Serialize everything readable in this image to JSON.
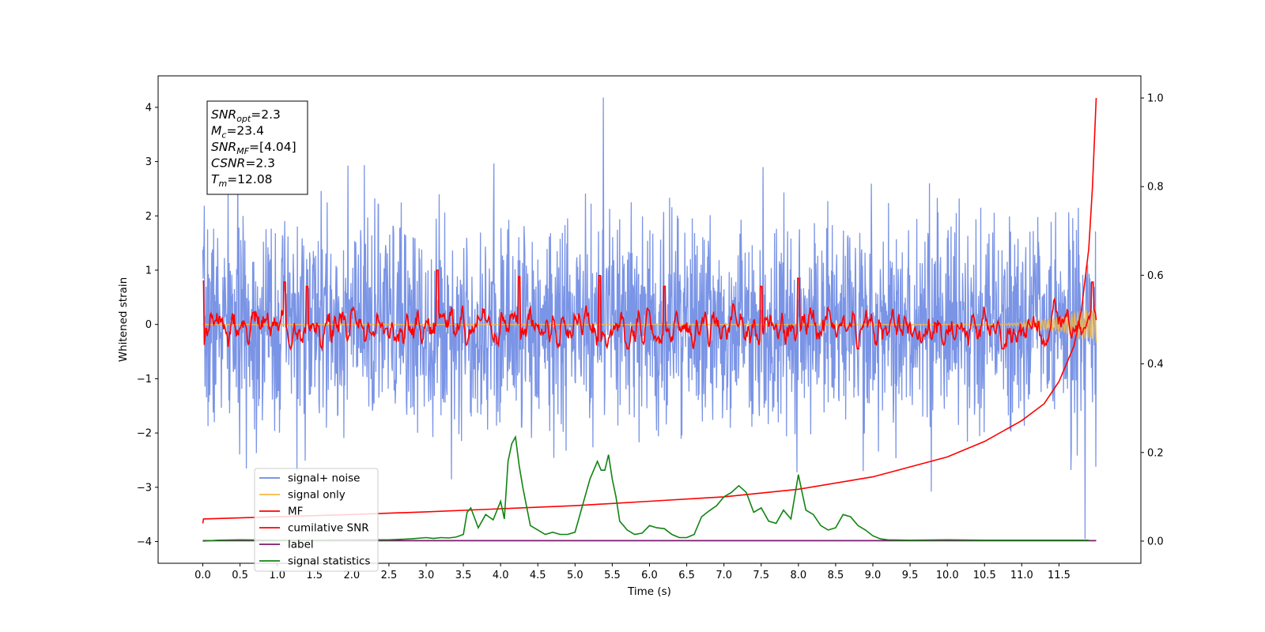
{
  "chart_data": {
    "type": "line",
    "xlabel": "Time (s)",
    "ylabel": "Whitened strain",
    "xlim": [
      -0.6,
      12.6
    ],
    "ylim": [
      -4.4,
      4.58
    ],
    "y2lim": [
      -0.05,
      1.05
    ],
    "x_ticks": [
      "0.0",
      "0.5",
      "1.0",
      "1.5",
      "2.0",
      "2.5",
      "3.0",
      "3.5",
      "4.0",
      "4.5",
      "5.0",
      "5.5",
      "6.0",
      "6.5",
      "7.0",
      "7.5",
      "8.0",
      "8.5",
      "9.0",
      "9.5",
      "10.0",
      "10.5",
      "11.0",
      "11.5"
    ],
    "y_ticks": [
      "4",
      "3",
      "2",
      "1",
      "0",
      "−1",
      "−2",
      "−3",
      "−4"
    ],
    "y2_ticks": [
      "1.0",
      "0.8",
      "0.6",
      "0.4",
      "0.2",
      "0.0"
    ],
    "annotation_lines": [
      {
        "sym": "SNR",
        "sub": "opt",
        "val": "=2.3"
      },
      {
        "sym": "M",
        "sub": "c",
        "val": "=23.4"
      },
      {
        "sym": "SNR",
        "sub": "MF",
        "val": "=[4.04]"
      },
      {
        "sym": "CSNR",
        "sub": "",
        "val": "=2.3"
      },
      {
        "sym": "T",
        "sub": "m",
        "val": "=12.08"
      }
    ],
    "legend_position": "lower-left",
    "series": [
      {
        "name": "signal+ noise",
        "color": "#6c88e3",
        "axis": "left",
        "description_values": {
          "x_range": [
            0,
            12
          ],
          "center": 0.0,
          "std": 1.0,
          "max": 4.18,
          "min": -3.95
        }
      },
      {
        "name": "signal only",
        "color": "#f5b845",
        "axis": "left",
        "description_values": {
          "x_range": [
            0,
            12
          ],
          "center": 0.0,
          "amplitude_end": 0.35
        }
      },
      {
        "name": "MF",
        "color": "#ff0000",
        "axis": "left",
        "description_values": {
          "x_range": [
            0,
            12
          ],
          "center": -0.05,
          "max": 1.0,
          "min": -0.45
        }
      },
      {
        "name": "cumilative SNR",
        "color": "#ff0000",
        "axis": "right",
        "x": [
          0.0,
          0.01,
          1.0,
          2.0,
          3.0,
          4.0,
          5.0,
          6.0,
          7.0,
          8.0,
          9.0,
          10.0,
          10.5,
          11.0,
          11.3,
          11.5,
          11.7,
          11.8,
          11.9,
          11.95,
          12.0
        ],
        "y": [
          0.04,
          0.05,
          0.055,
          0.06,
          0.066,
          0.073,
          0.08,
          0.09,
          0.1,
          0.117,
          0.145,
          0.19,
          0.225,
          0.272,
          0.31,
          0.36,
          0.44,
          0.52,
          0.66,
          0.8,
          1.0
        ]
      },
      {
        "name": "label",
        "color": "#7b1a6e",
        "axis": "right",
        "x": [
          0.0,
          12.0
        ],
        "y": [
          0.001,
          0.001
        ]
      },
      {
        "name": "signal statistics",
        "color": "#118411",
        "axis": "right",
        "x": [
          0.0,
          0.2,
          0.5,
          1.0,
          1.5,
          2.0,
          2.5,
          2.8,
          3.0,
          3.1,
          3.2,
          3.3,
          3.4,
          3.5,
          3.55,
          3.6,
          3.7,
          3.8,
          3.9,
          4.0,
          4.05,
          4.1,
          4.15,
          4.2,
          4.25,
          4.3,
          4.4,
          4.5,
          4.6,
          4.7,
          4.8,
          4.9,
          5.0,
          5.1,
          5.2,
          5.3,
          5.35,
          5.4,
          5.45,
          5.5,
          5.55,
          5.6,
          5.7,
          5.8,
          5.9,
          6.0,
          6.1,
          6.2,
          6.3,
          6.4,
          6.5,
          6.6,
          6.7,
          6.8,
          6.9,
          7.0,
          7.1,
          7.2,
          7.3,
          7.4,
          7.5,
          7.6,
          7.7,
          7.8,
          7.9,
          8.0,
          8.05,
          8.1,
          8.2,
          8.3,
          8.4,
          8.5,
          8.6,
          8.7,
          8.8,
          8.9,
          9.0,
          9.1,
          9.2,
          9.5,
          10.0,
          10.5,
          11.0,
          11.5,
          11.9
        ],
        "y": [
          0.0,
          0.002,
          0.003,
          0.002,
          0.002,
          0.003,
          0.003,
          0.005,
          0.008,
          0.006,
          0.008,
          0.007,
          0.009,
          0.015,
          0.065,
          0.075,
          0.03,
          0.06,
          0.048,
          0.09,
          0.05,
          0.18,
          0.22,
          0.235,
          0.17,
          0.12,
          0.035,
          0.025,
          0.015,
          0.02,
          0.015,
          0.015,
          0.02,
          0.08,
          0.14,
          0.18,
          0.16,
          0.16,
          0.195,
          0.14,
          0.1,
          0.045,
          0.025,
          0.015,
          0.018,
          0.035,
          0.03,
          0.028,
          0.015,
          0.008,
          0.008,
          0.015,
          0.055,
          0.068,
          0.08,
          0.1,
          0.11,
          0.125,
          0.11,
          0.065,
          0.075,
          0.045,
          0.04,
          0.07,
          0.05,
          0.15,
          0.11,
          0.07,
          0.06,
          0.035,
          0.025,
          0.03,
          0.06,
          0.055,
          0.035,
          0.025,
          0.012,
          0.005,
          0.003,
          0.002,
          0.003,
          0.002,
          0.002,
          0.002,
          0.002
        ]
      }
    ]
  }
}
